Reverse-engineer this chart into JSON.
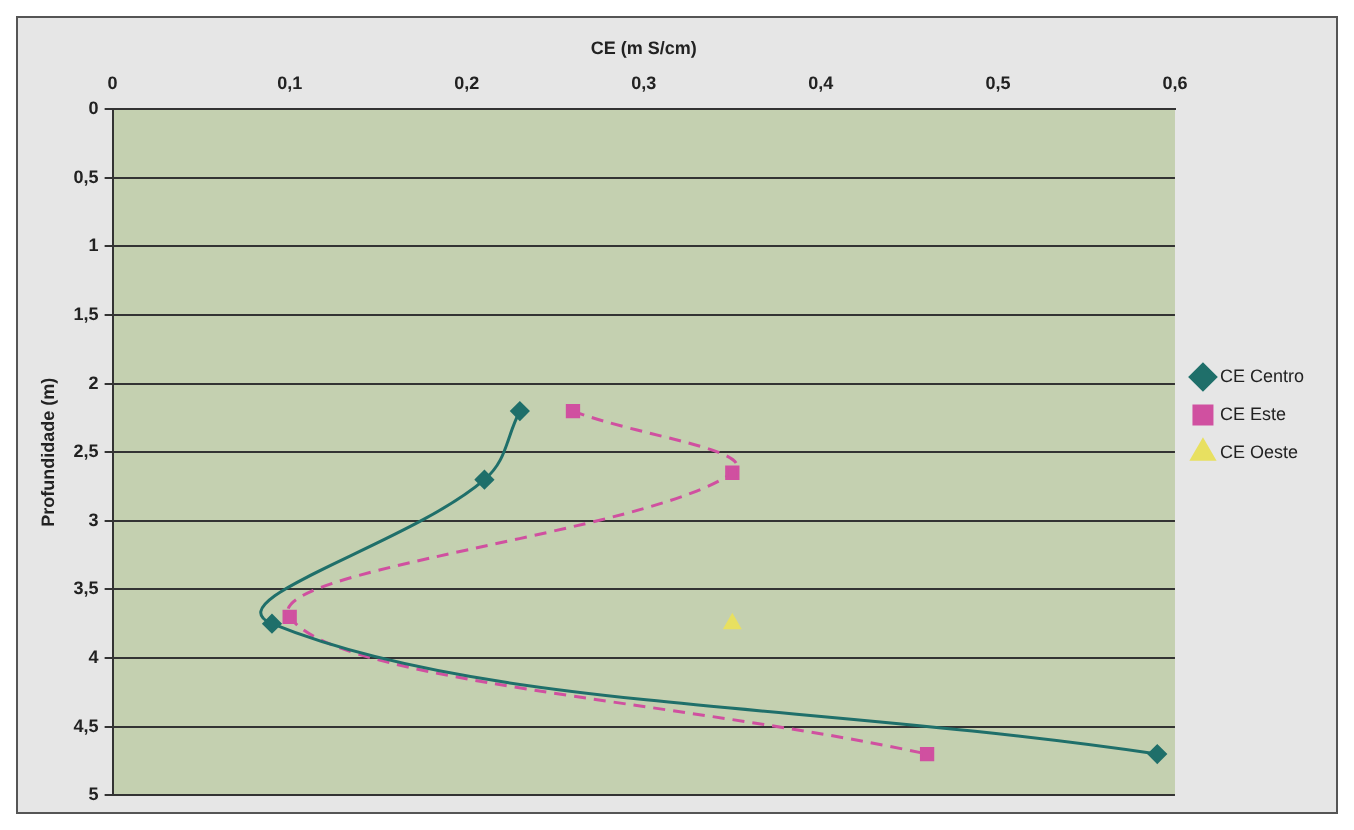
{
  "chart_data": {
    "type": "line",
    "xlabel": "CE (m S/cm)",
    "ylabel": "Profundidade (m)",
    "xlim": [
      0,
      0.6
    ],
    "xticks": [
      0,
      {
        "value": 0.1,
        "label": "0,1"
      },
      {
        "value": 0.2,
        "label": "0,2"
      },
      {
        "value": 0.3,
        "label": "0,3"
      },
      {
        "value": 0.4,
        "label": "0,4"
      },
      {
        "value": 0.5,
        "label": "0,5"
      },
      {
        "value": 0.6,
        "label": "0,6"
      }
    ],
    "ylim": [
      5,
      0
    ],
    "yticks": [
      0,
      {
        "value": 0.5,
        "label": "0,5"
      },
      1,
      {
        "value": 1.5,
        "label": "1,5"
      },
      2,
      {
        "value": 2.5,
        "label": "2,5"
      },
      3,
      {
        "value": 3.5,
        "label": "3,5"
      },
      4,
      {
        "value": 4.5,
        "label": "4,5"
      },
      5
    ],
    "grid": "y",
    "legend": "right",
    "series": [
      {
        "name": "CE Centro",
        "color": "#1f6f6a",
        "marker": "diamond",
        "line_style": "solid",
        "x": [
          0.23,
          0.21,
          0.09,
          0.59
        ],
        "values": [
          2.2,
          2.7,
          3.75,
          4.7
        ]
      },
      {
        "name": "CE Este",
        "color": "#d050a0",
        "marker": "square",
        "line_style": "dashed",
        "x": [
          0.26,
          0.35,
          0.1,
          0.46
        ],
        "values": [
          2.2,
          2.65,
          3.7,
          4.7
        ]
      },
      {
        "name": "CE Oeste",
        "color": "#e8e060",
        "marker": "triangle",
        "line_style": "solid",
        "x": [
          0.35
        ],
        "values": [
          3.75
        ]
      }
    ]
  }
}
